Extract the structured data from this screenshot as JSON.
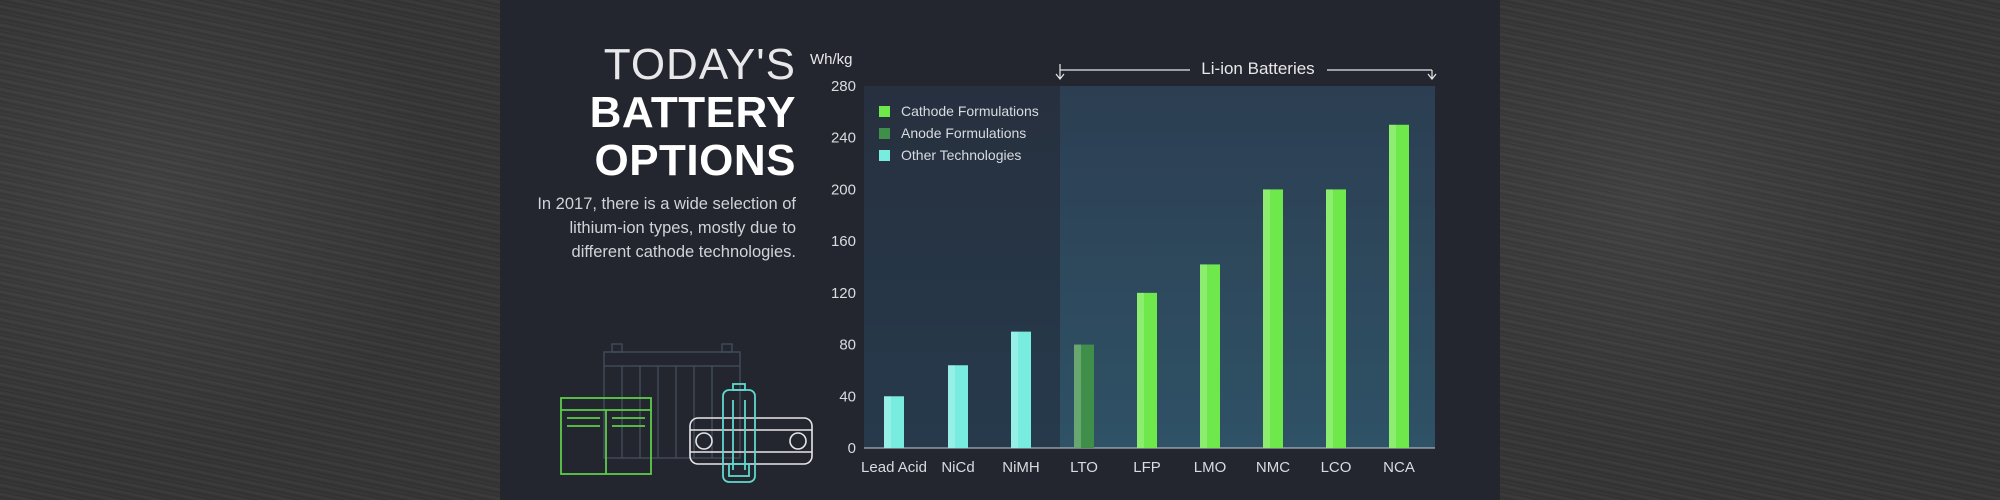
{
  "title": {
    "line1": "TODAY'S",
    "line2": "BATTERY",
    "line3": "OPTIONS",
    "description": "In 2017, there is a wide selection of lithium-ion types, mostly due to different cathode technologies."
  },
  "colors": {
    "panel": "#24262f",
    "cathode": "#6ee84a",
    "anode": "#3f8f4a",
    "other": "#79ece0",
    "battery_icon_green": "#5ccc4a",
    "battery_icon_teal": "#5fd9cf"
  },
  "chart_data": {
    "type": "bar",
    "y_unit": "Wh/kg",
    "ylim": [
      0,
      280
    ],
    "yticks": [
      0,
      40,
      80,
      120,
      160,
      200,
      240,
      280
    ],
    "categories": [
      "Lead Acid",
      "NiCd",
      "NiMH",
      "LTO",
      "LFP",
      "LMO",
      "NMC",
      "LCO",
      "NCA"
    ],
    "values": [
      40,
      64,
      90,
      80,
      120,
      142,
      200,
      200,
      250
    ],
    "groups": [
      "Other Technologies",
      "Other Technologies",
      "Other Technologies",
      "Anode Formulations",
      "Cathode Formulations",
      "Cathode Formulations",
      "Cathode Formulations",
      "Cathode Formulations",
      "Cathode Formulations"
    ],
    "legend": [
      "Cathode Formulations",
      "Anode Formulations",
      "Other Technologies"
    ],
    "legend_position": "top-left",
    "bracket_label": "Li-ion Batteries",
    "grid": false
  }
}
